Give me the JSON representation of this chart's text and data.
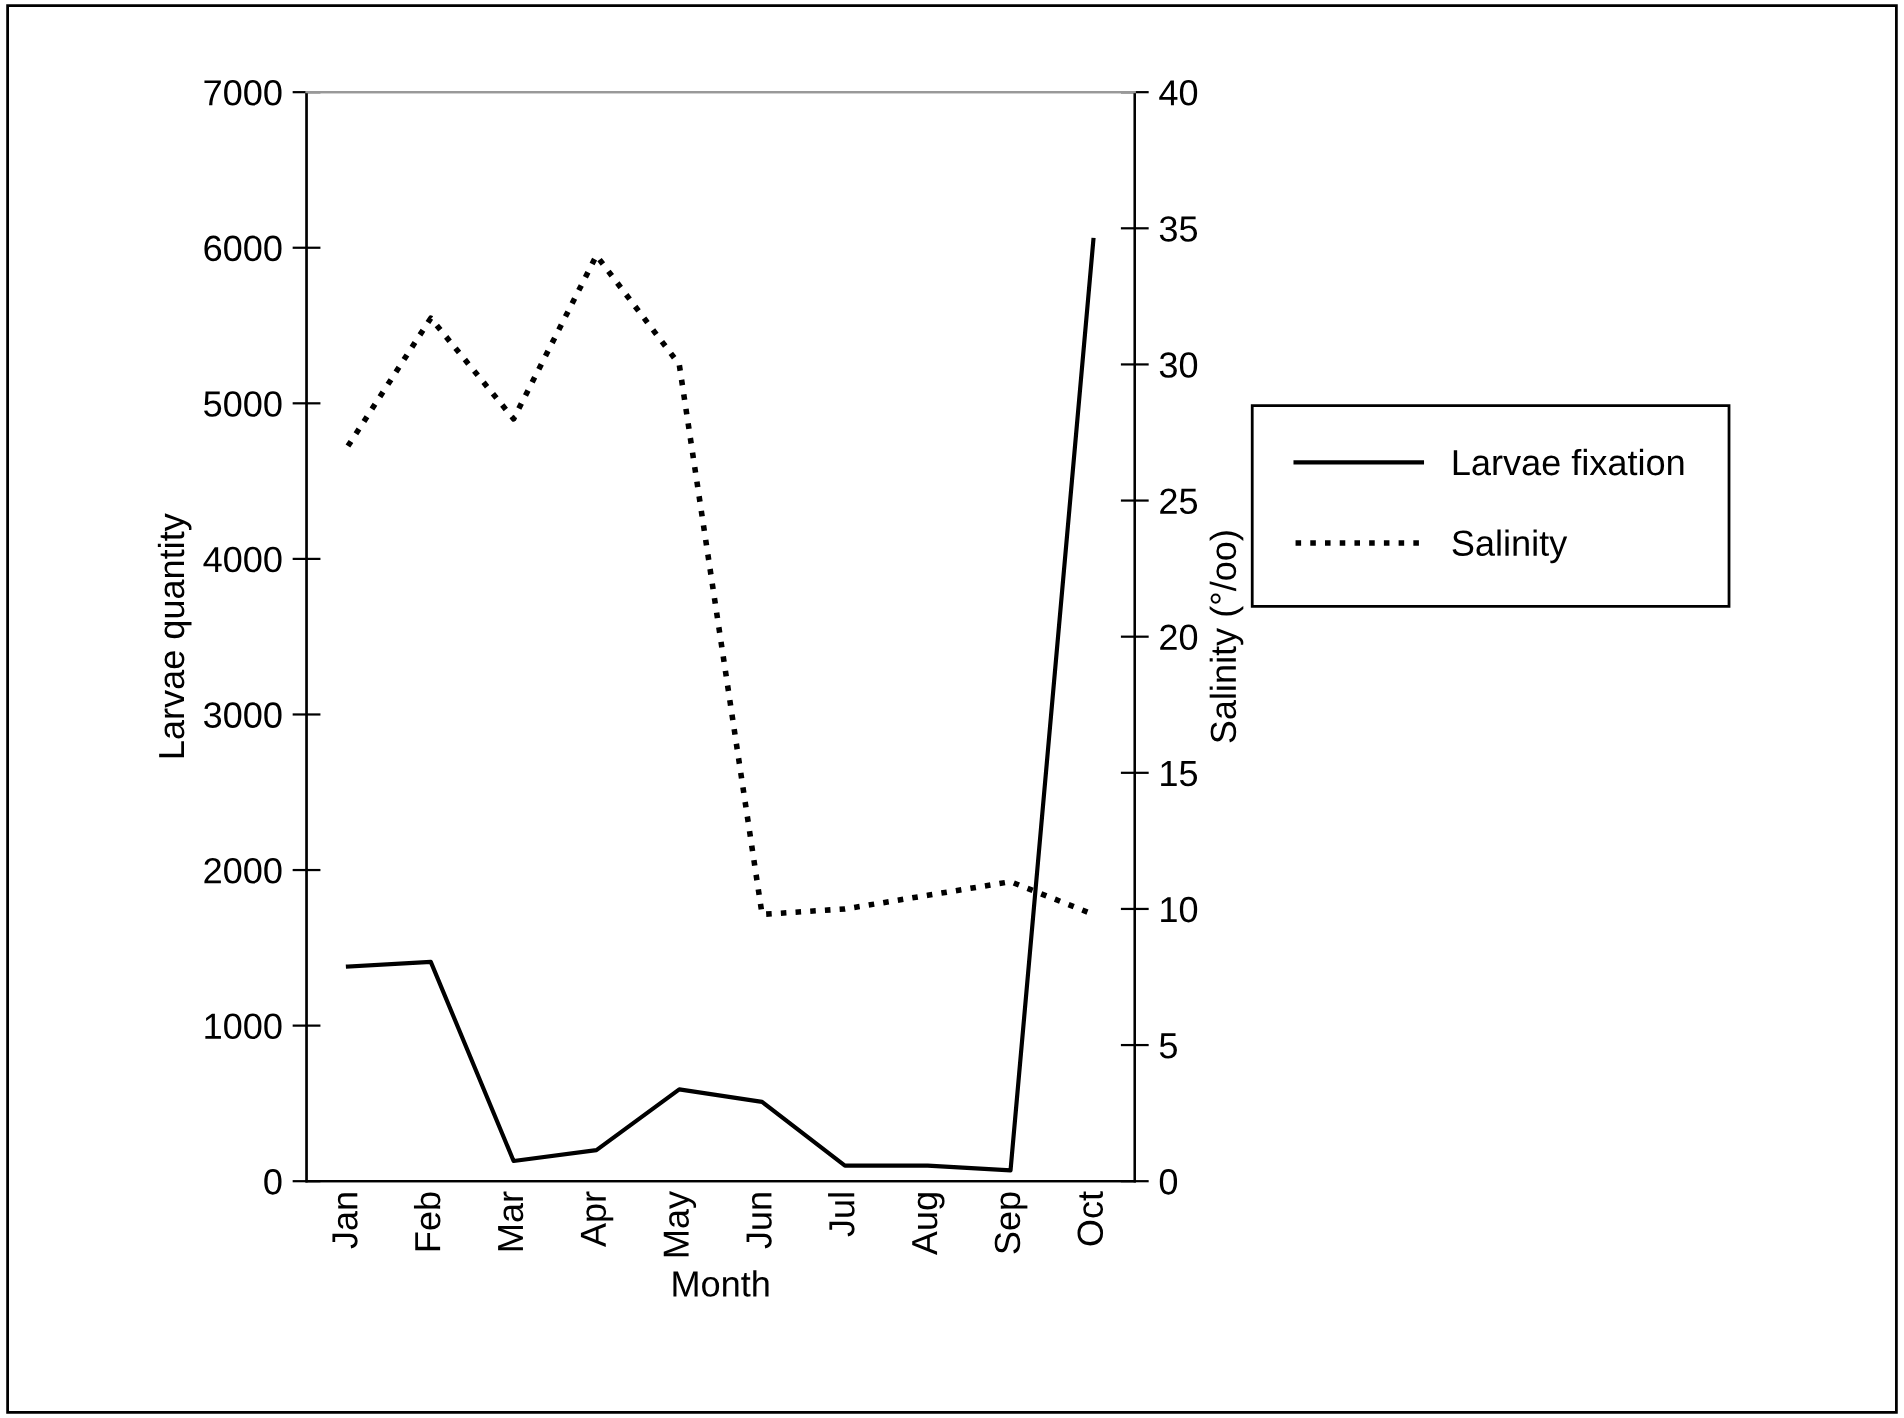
{
  "chart_data": {
    "type": "line",
    "xlabel": "Month",
    "ylabel": "Larvae quantity",
    "y2label": "Salinity (°/oo)",
    "categories": [
      "Jan",
      "Feb",
      "Mar",
      "Apr",
      "May",
      "Jun",
      "Jul",
      "Aug",
      "Sep",
      "Oct"
    ],
    "series": [
      {
        "name": "Larvae fixation",
        "color": "#000000",
        "line_style": "solid",
        "values": [
          1380,
          1410,
          130,
          200,
          590,
          510,
          100,
          100,
          70,
          6050
        ]
      },
      {
        "name": "Salinity",
        "color": "#000000",
        "line_style": "dotted",
        "axis": "y2",
        "values": [
          27,
          31.7,
          28,
          34,
          30,
          9.8,
          10,
          10.5,
          11,
          9.8
        ]
      }
    ],
    "ylim": [
      0,
      7000
    ],
    "yticks": [
      0,
      1000,
      2000,
      3000,
      4000,
      5000,
      6000,
      7000
    ],
    "y2lim": [
      0,
      40
    ],
    "y2ticks": [
      0,
      5,
      10,
      15,
      20,
      25,
      30,
      35,
      40
    ],
    "grid": false,
    "legend": "right",
    "marker": "none"
  }
}
